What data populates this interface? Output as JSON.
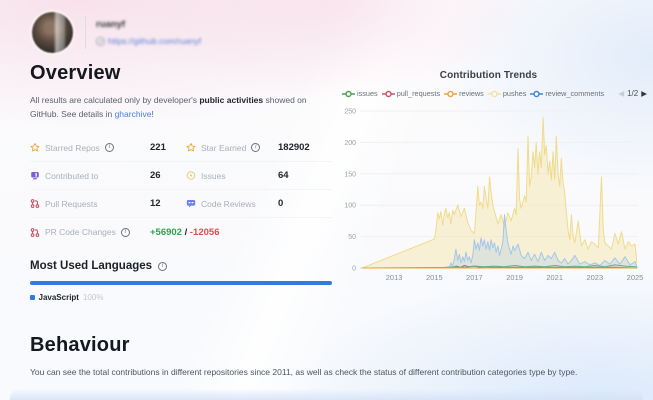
{
  "profile": {
    "username": "ruanyf",
    "url": "https://github.com/ruanyf"
  },
  "overview": {
    "title": "Overview",
    "desc_pre": "All results are calculated only by developer's ",
    "desc_bold": "public activities",
    "desc_mid": " showed on GitHub. See details in ",
    "desc_link": "gharchive",
    "desc_post": "!",
    "stats": [
      {
        "icon": "star",
        "icon_color": "#EBA937",
        "label": "Starred Repos",
        "info": true,
        "value": "221"
      },
      {
        "icon": "star",
        "icon_color": "#EBA937",
        "label": "Star Earned",
        "info": true,
        "value": "182902"
      },
      {
        "icon": "monitor",
        "icon_color": "#7B5BD6",
        "label": "Contributed to",
        "info": false,
        "value": "26"
      },
      {
        "icon": "issue",
        "icon_color": "#E7CF7D",
        "label": "Issues",
        "info": false,
        "value": "64"
      },
      {
        "icon": "pr",
        "icon_color": "#C94B62",
        "label": "Pull Requests",
        "info": false,
        "value": "12"
      },
      {
        "icon": "review",
        "icon_color": "#6D7EF2",
        "label": "Code Reviews",
        "info": false,
        "value": "0"
      },
      {
        "icon": "pr",
        "icon_color": "#C94B62",
        "label": "PR Code Changes",
        "info": true,
        "value_parts": [
          {
            "text": "+56902",
            "color": "#2DA44E"
          },
          {
            "text": " / ",
            "color": "#22262B"
          },
          {
            "text": "-12056",
            "color": "#E5484D"
          }
        ]
      }
    ]
  },
  "languages": {
    "title": "Most Used Languages",
    "bar_color": "#2E7CE0",
    "items": [
      {
        "name": "JavaScript",
        "percent": "100%",
        "color": "#2E7CE0"
      }
    ]
  },
  "trends": {
    "title": "Contribution Trends",
    "pagination": {
      "prev": "◀",
      "label": "1/2",
      "next": "▶"
    }
  },
  "chart_data": {
    "type": "area",
    "title": "Contribution Trends",
    "xlim": [
      2011.3,
      2025.15
    ],
    "ylim": [
      0,
      250
    ],
    "y_ticks": [
      0,
      50,
      100,
      150,
      200,
      250
    ],
    "x_ticks": [
      2013,
      2015,
      2017,
      2019,
      2021,
      2023,
      2025
    ],
    "grid": true,
    "legend_position": "top",
    "legend_order": [
      "issues",
      "pull_requests",
      "reviews",
      "pushes",
      "review_comments"
    ],
    "legend_colors": {
      "issues": "#4FA156",
      "pull_requests": "#D34F67",
      "reviews": "#EFA63C",
      "pushes": "#F2E2A0",
      "review_comments": "#3C86DD"
    },
    "series": [
      {
        "name": "pushes",
        "color": "#F0DB8C",
        "fill": "rgba(244,222,130,0.32)",
        "points": [
          [
            2011.4,
            0
          ],
          [
            2015.0,
            46
          ],
          [
            2015.08,
            60
          ],
          [
            2015.17,
            88
          ],
          [
            2015.25,
            78
          ],
          [
            2015.33,
            90
          ],
          [
            2015.42,
            68
          ],
          [
            2015.5,
            85
          ],
          [
            2015.58,
            95
          ],
          [
            2015.67,
            80
          ],
          [
            2015.75,
            88
          ],
          [
            2015.83,
            70
          ],
          [
            2015.92,
            92
          ],
          [
            2016.0,
            85
          ],
          [
            2016.17,
            100
          ],
          [
            2016.33,
            82
          ],
          [
            2016.5,
            95
          ],
          [
            2016.67,
            72
          ],
          [
            2016.83,
            60
          ],
          [
            2017.0,
            55
          ],
          [
            2017.08,
            90
          ],
          [
            2017.17,
            130
          ],
          [
            2017.25,
            100
          ],
          [
            2017.33,
            105
          ],
          [
            2017.42,
            95
          ],
          [
            2017.5,
            130
          ],
          [
            2017.58,
            110
          ],
          [
            2017.67,
            95
          ],
          [
            2017.75,
            145
          ],
          [
            2017.83,
            120
          ],
          [
            2017.92,
            100
          ],
          [
            2018.0,
            90
          ],
          [
            2018.17,
            70
          ],
          [
            2018.33,
            85
          ],
          [
            2018.5,
            65
          ],
          [
            2018.67,
            88
          ],
          [
            2018.83,
            75
          ],
          [
            2019.0,
            95
          ],
          [
            2019.08,
            85
          ],
          [
            2019.17,
            190
          ],
          [
            2019.25,
            110
          ],
          [
            2019.33,
            95
          ],
          [
            2019.5,
            115
          ],
          [
            2019.58,
            105
          ],
          [
            2019.67,
            210
          ],
          [
            2019.75,
            130
          ],
          [
            2019.83,
            145
          ],
          [
            2019.92,
            185
          ],
          [
            2020.0,
            160
          ],
          [
            2020.08,
            200
          ],
          [
            2020.17,
            150
          ],
          [
            2020.25,
            185
          ],
          [
            2020.33,
            160
          ],
          [
            2020.42,
            240
          ],
          [
            2020.5,
            180
          ],
          [
            2020.58,
            195
          ],
          [
            2020.67,
            150
          ],
          [
            2020.75,
            170
          ],
          [
            2020.83,
            140
          ],
          [
            2020.92,
            185
          ],
          [
            2021.0,
            140
          ],
          [
            2021.08,
            210
          ],
          [
            2021.17,
            150
          ],
          [
            2021.25,
            130
          ],
          [
            2021.33,
            175
          ],
          [
            2021.42,
            135
          ],
          [
            2021.5,
            120
          ],
          [
            2021.58,
            90
          ],
          [
            2021.67,
            60
          ],
          [
            2021.75,
            45
          ],
          [
            2021.83,
            85
          ],
          [
            2021.92,
            50
          ],
          [
            2022.0,
            40
          ],
          [
            2022.17,
            75
          ],
          [
            2022.33,
            35
          ],
          [
            2022.5,
            45
          ],
          [
            2022.67,
            30
          ],
          [
            2022.83,
            42
          ],
          [
            2023.0,
            38
          ],
          [
            2023.17,
            32
          ],
          [
            2023.33,
            145
          ],
          [
            2023.42,
            60
          ],
          [
            2023.5,
            40
          ],
          [
            2023.67,
            35
          ],
          [
            2023.83,
            30
          ],
          [
            2024.0,
            55
          ],
          [
            2024.17,
            38
          ],
          [
            2024.33,
            58
          ],
          [
            2024.5,
            30
          ],
          [
            2024.67,
            42
          ],
          [
            2024.83,
            35
          ],
          [
            2025.0,
            38
          ],
          [
            2025.1,
            8
          ]
        ]
      },
      {
        "name": "review_comments",
        "color": "#A3C6EA",
        "fill": "rgba(163,198,234,0.28)",
        "points": [
          [
            2015.75,
            0
          ],
          [
            2015.83,
            8
          ],
          [
            2015.92,
            4
          ],
          [
            2016.0,
            14
          ],
          [
            2016.08,
            30
          ],
          [
            2016.17,
            12
          ],
          [
            2016.25,
            22
          ],
          [
            2016.33,
            8
          ],
          [
            2016.42,
            18
          ],
          [
            2016.5,
            10
          ],
          [
            2016.58,
            25
          ],
          [
            2016.67,
            12
          ],
          [
            2016.75,
            18
          ],
          [
            2016.83,
            8
          ],
          [
            2016.92,
            20
          ],
          [
            2017.0,
            45
          ],
          [
            2017.08,
            30
          ],
          [
            2017.17,
            40
          ],
          [
            2017.25,
            28
          ],
          [
            2017.33,
            48
          ],
          [
            2017.42,
            35
          ],
          [
            2017.5,
            45
          ],
          [
            2017.58,
            30
          ],
          [
            2017.67,
            42
          ],
          [
            2017.75,
            28
          ],
          [
            2017.83,
            45
          ],
          [
            2017.92,
            32
          ],
          [
            2018.0,
            40
          ],
          [
            2018.08,
            25
          ],
          [
            2018.17,
            35
          ],
          [
            2018.25,
            20
          ],
          [
            2018.33,
            30
          ],
          [
            2018.42,
            42
          ],
          [
            2018.5,
            85
          ],
          [
            2018.58,
            60
          ],
          [
            2018.67,
            40
          ],
          [
            2018.75,
            30
          ],
          [
            2018.83,
            22
          ],
          [
            2018.92,
            35
          ],
          [
            2019.0,
            28
          ],
          [
            2019.17,
            38
          ],
          [
            2019.33,
            20
          ],
          [
            2019.5,
            15
          ],
          [
            2019.67,
            25
          ],
          [
            2019.83,
            12
          ],
          [
            2020.0,
            22
          ],
          [
            2020.17,
            10
          ],
          [
            2020.33,
            25
          ],
          [
            2020.5,
            12
          ],
          [
            2020.67,
            20
          ],
          [
            2020.83,
            15
          ],
          [
            2021.0,
            25
          ],
          [
            2021.17,
            12
          ],
          [
            2021.33,
            8
          ],
          [
            2021.5,
            15
          ],
          [
            2021.67,
            6
          ],
          [
            2021.83,
            12
          ],
          [
            2022.0,
            20
          ],
          [
            2022.25,
            6
          ],
          [
            2022.5,
            10
          ],
          [
            2022.75,
            5
          ],
          [
            2023.0,
            8
          ],
          [
            2023.25,
            4
          ],
          [
            2023.5,
            12
          ],
          [
            2023.75,
            6
          ],
          [
            2024.0,
            16
          ],
          [
            2024.25,
            6
          ],
          [
            2024.5,
            18
          ],
          [
            2024.75,
            5
          ],
          [
            2025.0,
            10
          ],
          [
            2025.1,
            2
          ]
        ]
      },
      {
        "name": "pull_requests",
        "color": "#C9516B",
        "fill": "none",
        "points": [
          [
            2015.9,
            0
          ],
          [
            2016.1,
            3
          ],
          [
            2016.3,
            1
          ],
          [
            2016.5,
            4
          ],
          [
            2016.7,
            2
          ],
          [
            2017.0,
            3
          ],
          [
            2017.3,
            1
          ],
          [
            2017.6,
            2
          ],
          [
            2018.0,
            1
          ],
          [
            2019.0,
            1
          ],
          [
            2020.0,
            1
          ],
          [
            2021.0,
            1
          ],
          [
            2022.0,
            1
          ],
          [
            2023.0,
            1
          ],
          [
            2024.0,
            1
          ],
          [
            2025.1,
            0
          ]
        ]
      },
      {
        "name": "issues",
        "color": "#5FB383",
        "fill": "rgba(95,179,131,0.12)",
        "points": [
          [
            2011.4,
            0
          ],
          [
            2015.5,
            1
          ],
          [
            2016.0,
            2
          ],
          [
            2016.5,
            1
          ],
          [
            2017.0,
            3
          ],
          [
            2017.5,
            2
          ],
          [
            2018.0,
            3
          ],
          [
            2018.5,
            2
          ],
          [
            2019.0,
            4
          ],
          [
            2019.5,
            2
          ],
          [
            2020.0,
            3
          ],
          [
            2020.5,
            2
          ],
          [
            2021.0,
            4
          ],
          [
            2021.5,
            2
          ],
          [
            2022.0,
            3
          ],
          [
            2022.5,
            2
          ],
          [
            2023.0,
            4
          ],
          [
            2023.5,
            2
          ],
          [
            2024.0,
            5
          ],
          [
            2024.5,
            3
          ],
          [
            2025.0,
            2
          ],
          [
            2025.1,
            1
          ]
        ]
      },
      {
        "name": "reviews",
        "color": "#EFA63C",
        "fill": "none",
        "points": [
          [
            2011.4,
            0
          ],
          [
            2025.1,
            0
          ]
        ]
      }
    ]
  },
  "behaviour": {
    "title": "Behaviour",
    "desc": "You can see the total contributions in different repositories since 2011, as well as check the status of different contribution categories type by type."
  }
}
